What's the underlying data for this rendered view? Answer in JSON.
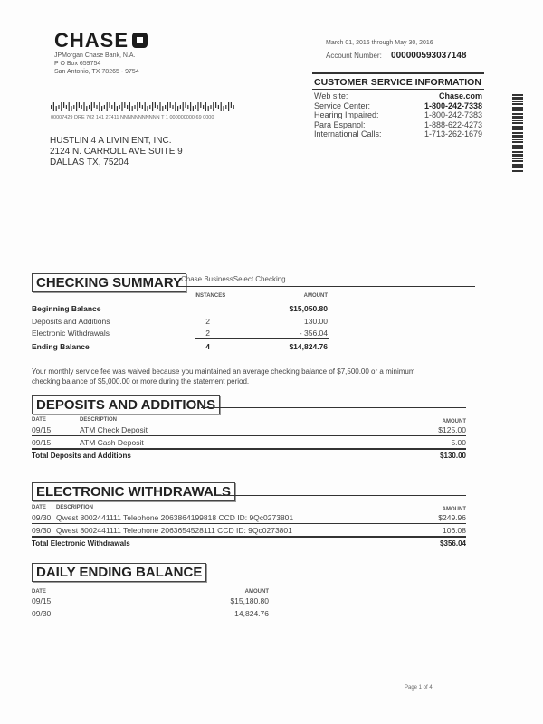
{
  "bank": {
    "logo_text": "CHASE",
    "name": "JPMorgan Chase Bank, N.A.",
    "po_box": "P O Box 659754",
    "city": "San Antonio, TX 78265 - 9754"
  },
  "mail_code": "00007429 DRE 702 141 27411 NNNNNNNNNNN T 1 000000000 69 0000",
  "customer": {
    "name": "HUSTLIN 4 A LIVIN ENT, INC.",
    "street": "2124 N. CARROLL AVE SUITE 9",
    "city": "DALLAS TX, 75204"
  },
  "statement": {
    "period": "March 01, 2016 through May 30, 2016",
    "account_label": "Account Number:",
    "account_number": "000000593037148"
  },
  "customer_service": {
    "title": "CUSTOMER SERVICE INFORMATION",
    "rows": [
      {
        "label": "Web site:",
        "value": "Chase.com"
      },
      {
        "label": "Service Center:",
        "value": "1-800-242-7338"
      },
      {
        "label": "Hearing Impaired:",
        "value": "1-800-242-7383"
      },
      {
        "label": "Para Espanol:",
        "value": "1-888-622-4273"
      },
      {
        "label": "International Calls:",
        "value": "1-713-262-1679"
      }
    ]
  },
  "checking_summary": {
    "title": "CHECKING SUMMARY",
    "product": "Chase BusinessSelect Checking",
    "headers": {
      "instances": "INSTANCES",
      "amount": "AMOUNT"
    },
    "rows": [
      {
        "label": "Beginning Balance",
        "instances": "",
        "amount": "$15,050.80"
      },
      {
        "label": "Deposits and Additions",
        "instances": "2",
        "amount": "130.00"
      },
      {
        "label": "Electronic Withdrawals",
        "instances": "2",
        "amount": "- 356.04"
      },
      {
        "label": "Ending Balance",
        "instances": "4",
        "amount": "$14,824.76"
      }
    ]
  },
  "fee_notice": {
    "line1": "Your monthly service fee was waived because you maintained an average checking balance of  $7,500.00 or a minimum",
    "line2": "checking balance of  $5,000.00 or more during the statement period."
  },
  "deposits": {
    "title": "DEPOSITS AND ADDITIONS",
    "headers": {
      "date": "DATE",
      "description": "DESCRIPTION",
      "amount": "AMOUNT"
    },
    "rows": [
      {
        "date": "09/15",
        "description": "ATM Check Deposit",
        "amount": "$125.00"
      },
      {
        "date": "09/15",
        "description": "ATM Cash Deposit",
        "amount": "5.00"
      }
    ],
    "total_label": "Total Deposits and Additions",
    "total": "$130.00"
  },
  "withdrawals": {
    "title": "ELECTRONIC WITHDRAWALS",
    "headers": {
      "date": "DATE",
      "description": "DESCRIPTION",
      "amount": "AMOUNT"
    },
    "rows": [
      {
        "date": "09/30",
        "description": "Qwest 8002441111 Telephone  2063864199818   CCD ID: 9Qc0273801",
        "amount": "$249.96"
      },
      {
        "date": "09/30",
        "description": "Qwest 8002441111 Telephone  2063654528111   CCD ID: 9Qc0273801",
        "amount": "106.08"
      }
    ],
    "total_label": "Total Electronic Withdrawals",
    "total": "$356.04"
  },
  "daily_balance": {
    "title": "DAILY ENDING BALANCE",
    "headers": {
      "date": "DATE",
      "amount": "AMOUNT"
    },
    "rows": [
      {
        "date": "09/15",
        "amount": "$15,180.80"
      },
      {
        "date": "09/30",
        "amount": "14,824.76"
      }
    ]
  },
  "footer": {
    "page": "Page 1 of 4"
  }
}
